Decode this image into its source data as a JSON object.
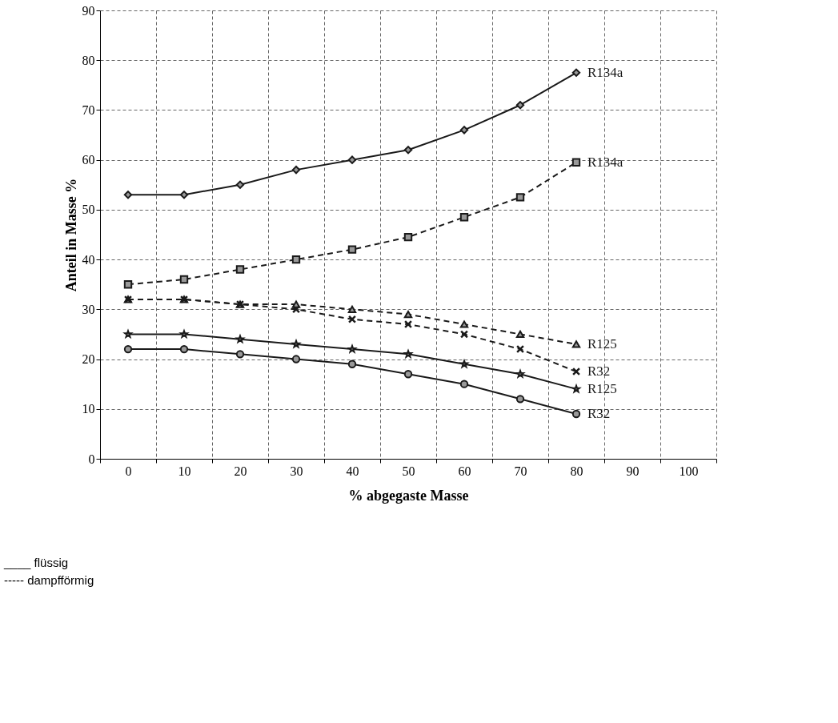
{
  "chart_data": {
    "type": "line",
    "xlabel": "% abgegaste Masse",
    "ylabel": "Anteil in Masse %",
    "categories": [
      "0",
      "10",
      "20",
      "30",
      "40",
      "50",
      "60",
      "70",
      "80",
      "90",
      "100"
    ],
    "ylim": [
      0,
      90
    ],
    "yticks": [
      0,
      10,
      20,
      30,
      40,
      50,
      60,
      70,
      80,
      90
    ],
    "grid": true,
    "series": [
      {
        "name": "R134a",
        "color": "#1a1a1a",
        "line_style": "solid",
        "marker": "diamond",
        "values": [
          53,
          53,
          55,
          58,
          60,
          62,
          66,
          71,
          77.5,
          null,
          null
        ]
      },
      {
        "name": "R134a",
        "color": "#1a1a1a",
        "line_style": "dashed",
        "marker": "square",
        "values": [
          35,
          36,
          38,
          40,
          42,
          44.5,
          48.5,
          52.5,
          59.5,
          null,
          null
        ]
      },
      {
        "name": "R125",
        "color": "#1a1a1a",
        "line_style": "dashed",
        "marker": "triangle",
        "values": [
          32,
          32,
          31,
          31,
          30,
          29,
          27,
          25,
          23,
          null,
          null
        ]
      },
      {
        "name": "R32",
        "color": "#1a1a1a",
        "line_style": "dashed",
        "marker": "cross",
        "values": [
          32,
          32,
          31,
          30,
          28,
          27,
          25,
          22,
          17.5,
          null,
          null
        ]
      },
      {
        "name": "R125",
        "color": "#1a1a1a",
        "line_style": "solid",
        "marker": "star",
        "values": [
          25,
          25,
          24,
          23,
          22,
          21,
          19,
          17,
          14,
          null,
          null
        ]
      },
      {
        "name": "R32",
        "color": "#1a1a1a",
        "line_style": "solid",
        "marker": "circle",
        "values": [
          22,
          22,
          21,
          20,
          19,
          17,
          15,
          12,
          9,
          null,
          null
        ]
      }
    ],
    "annotations": [
      "____ flüssig",
      "----- dampfförmig"
    ]
  }
}
